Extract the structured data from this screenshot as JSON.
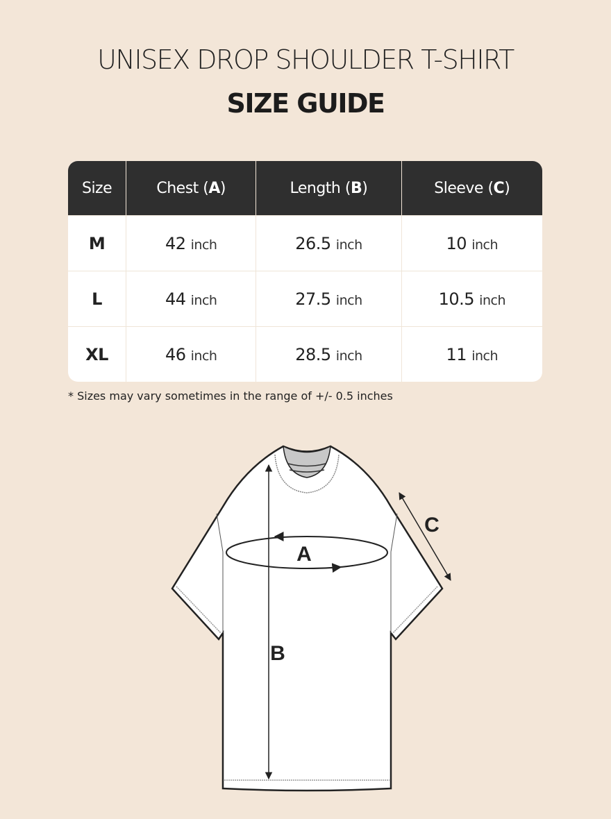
{
  "header": {
    "title": "UNISEX DROP SHOULDER T-SHIRT",
    "subtitle": "SIZE GUIDE"
  },
  "table": {
    "columns": [
      {
        "label": "Size",
        "key": ""
      },
      {
        "label": "Chest (",
        "key": "A"
      },
      {
        "label": "Length (",
        "key": "B"
      },
      {
        "label": "Sleeve (",
        "key": "C"
      }
    ],
    "unit": "inch",
    "rows": [
      {
        "size": "M",
        "chest": "42",
        "length": "26.5",
        "sleeve": "10"
      },
      {
        "size": "L",
        "chest": "44",
        "length": "27.5",
        "sleeve": "10.5"
      },
      {
        "size": "XL",
        "chest": "46",
        "length": "28.5",
        "sleeve": "11"
      }
    ]
  },
  "note": "* Sizes may vary sometimes in the range of +/- 0.5 inches",
  "diagram": {
    "label_a": "A",
    "label_b": "B",
    "label_c": "C"
  },
  "colors": {
    "background": "#f3e6d8",
    "header": "#2f2f2f"
  }
}
